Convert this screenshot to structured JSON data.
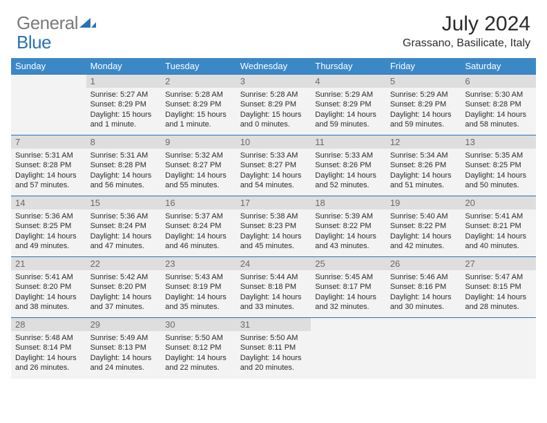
{
  "brand": {
    "part1": "General",
    "part2": "Blue"
  },
  "title": "July 2024",
  "location": "Grassano, Basilicate, Italy",
  "colors": {
    "header_bg": "#3b88c7",
    "header_text": "#ffffff",
    "daynum_bg": "#dedede",
    "cell_bg": "#f3f3f3",
    "rule": "#2a72b5",
    "text": "#2b2b2b",
    "logo_gray": "#7a7a7a",
    "logo_blue": "#2a72b5"
  },
  "fonts": {
    "title_size": 30,
    "location_size": 16,
    "th_size": 13,
    "body_size": 11
  },
  "day_labels": [
    "Sunday",
    "Monday",
    "Tuesday",
    "Wednesday",
    "Thursday",
    "Friday",
    "Saturday"
  ],
  "weeks": [
    [
      {
        "n": "",
        "sr": "",
        "ss": "",
        "dl": ""
      },
      {
        "n": "1",
        "sr": "5:27 AM",
        "ss": "8:29 PM",
        "dl": "15 hours and 1 minute."
      },
      {
        "n": "2",
        "sr": "5:28 AM",
        "ss": "8:29 PM",
        "dl": "15 hours and 1 minute."
      },
      {
        "n": "3",
        "sr": "5:28 AM",
        "ss": "8:29 PM",
        "dl": "15 hours and 0 minutes."
      },
      {
        "n": "4",
        "sr": "5:29 AM",
        "ss": "8:29 PM",
        "dl": "14 hours and 59 minutes."
      },
      {
        "n": "5",
        "sr": "5:29 AM",
        "ss": "8:29 PM",
        "dl": "14 hours and 59 minutes."
      },
      {
        "n": "6",
        "sr": "5:30 AM",
        "ss": "8:28 PM",
        "dl": "14 hours and 58 minutes."
      }
    ],
    [
      {
        "n": "7",
        "sr": "5:31 AM",
        "ss": "8:28 PM",
        "dl": "14 hours and 57 minutes."
      },
      {
        "n": "8",
        "sr": "5:31 AM",
        "ss": "8:28 PM",
        "dl": "14 hours and 56 minutes."
      },
      {
        "n": "9",
        "sr": "5:32 AM",
        "ss": "8:27 PM",
        "dl": "14 hours and 55 minutes."
      },
      {
        "n": "10",
        "sr": "5:33 AM",
        "ss": "8:27 PM",
        "dl": "14 hours and 54 minutes."
      },
      {
        "n": "11",
        "sr": "5:33 AM",
        "ss": "8:26 PM",
        "dl": "14 hours and 52 minutes."
      },
      {
        "n": "12",
        "sr": "5:34 AM",
        "ss": "8:26 PM",
        "dl": "14 hours and 51 minutes."
      },
      {
        "n": "13",
        "sr": "5:35 AM",
        "ss": "8:25 PM",
        "dl": "14 hours and 50 minutes."
      }
    ],
    [
      {
        "n": "14",
        "sr": "5:36 AM",
        "ss": "8:25 PM",
        "dl": "14 hours and 49 minutes."
      },
      {
        "n": "15",
        "sr": "5:36 AM",
        "ss": "8:24 PM",
        "dl": "14 hours and 47 minutes."
      },
      {
        "n": "16",
        "sr": "5:37 AM",
        "ss": "8:24 PM",
        "dl": "14 hours and 46 minutes."
      },
      {
        "n": "17",
        "sr": "5:38 AM",
        "ss": "8:23 PM",
        "dl": "14 hours and 45 minutes."
      },
      {
        "n": "18",
        "sr": "5:39 AM",
        "ss": "8:22 PM",
        "dl": "14 hours and 43 minutes."
      },
      {
        "n": "19",
        "sr": "5:40 AM",
        "ss": "8:22 PM",
        "dl": "14 hours and 42 minutes."
      },
      {
        "n": "20",
        "sr": "5:41 AM",
        "ss": "8:21 PM",
        "dl": "14 hours and 40 minutes."
      }
    ],
    [
      {
        "n": "21",
        "sr": "5:41 AM",
        "ss": "8:20 PM",
        "dl": "14 hours and 38 minutes."
      },
      {
        "n": "22",
        "sr": "5:42 AM",
        "ss": "8:20 PM",
        "dl": "14 hours and 37 minutes."
      },
      {
        "n": "23",
        "sr": "5:43 AM",
        "ss": "8:19 PM",
        "dl": "14 hours and 35 minutes."
      },
      {
        "n": "24",
        "sr": "5:44 AM",
        "ss": "8:18 PM",
        "dl": "14 hours and 33 minutes."
      },
      {
        "n": "25",
        "sr": "5:45 AM",
        "ss": "8:17 PM",
        "dl": "14 hours and 32 minutes."
      },
      {
        "n": "26",
        "sr": "5:46 AM",
        "ss": "8:16 PM",
        "dl": "14 hours and 30 minutes."
      },
      {
        "n": "27",
        "sr": "5:47 AM",
        "ss": "8:15 PM",
        "dl": "14 hours and 28 minutes."
      }
    ],
    [
      {
        "n": "28",
        "sr": "5:48 AM",
        "ss": "8:14 PM",
        "dl": "14 hours and 26 minutes."
      },
      {
        "n": "29",
        "sr": "5:49 AM",
        "ss": "8:13 PM",
        "dl": "14 hours and 24 minutes."
      },
      {
        "n": "30",
        "sr": "5:50 AM",
        "ss": "8:12 PM",
        "dl": "14 hours and 22 minutes."
      },
      {
        "n": "31",
        "sr": "5:50 AM",
        "ss": "8:11 PM",
        "dl": "14 hours and 20 minutes."
      },
      {
        "n": "",
        "sr": "",
        "ss": "",
        "dl": ""
      },
      {
        "n": "",
        "sr": "",
        "ss": "",
        "dl": ""
      },
      {
        "n": "",
        "sr": "",
        "ss": "",
        "dl": ""
      }
    ]
  ],
  "labels": {
    "sunrise": "Sunrise: ",
    "sunset": "Sunset: ",
    "daylight": "Daylight: "
  }
}
